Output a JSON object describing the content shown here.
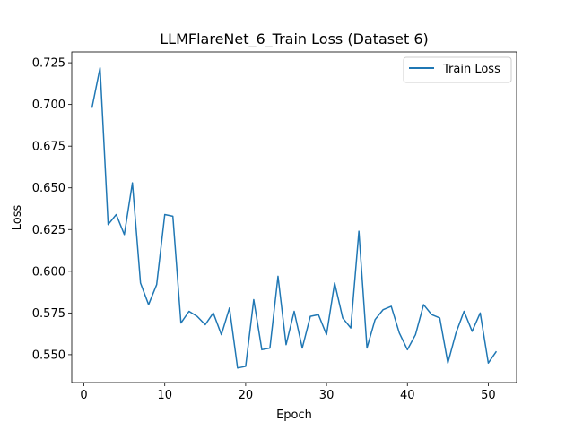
{
  "chart_data": {
    "type": "line",
    "title": "LLMFlareNet_6_Train Loss  (Dataset 6)",
    "xlabel": "Epoch",
    "ylabel": "Loss",
    "xlim": [
      -1.5,
      53.5
    ],
    "ylim": [
      0.5333,
      0.7315
    ],
    "xticks": [
      0,
      10,
      20,
      30,
      40,
      50
    ],
    "yticks": [
      0.55,
      0.575,
      0.6,
      0.625,
      0.65,
      0.675,
      0.7,
      0.725
    ],
    "ytick_labels": [
      "0.550",
      "0.575",
      "0.600",
      "0.625",
      "0.650",
      "0.675",
      "0.700",
      "0.725"
    ],
    "grid": false,
    "legend_position": "top-right",
    "series": [
      {
        "name": "Train Loss",
        "color": "#1f77b4",
        "x": [
          1,
          2,
          3,
          4,
          5,
          6,
          7,
          8,
          9,
          10,
          11,
          12,
          13,
          14,
          15,
          16,
          17,
          18,
          19,
          20,
          21,
          22,
          23,
          24,
          25,
          26,
          27,
          28,
          29,
          30,
          31,
          32,
          33,
          34,
          35,
          36,
          37,
          38,
          39,
          40,
          41,
          42,
          43,
          44,
          45,
          46,
          47,
          48,
          49,
          50,
          51
        ],
        "y": [
          0.698,
          0.722,
          0.628,
          0.634,
          0.622,
          0.653,
          0.593,
          0.58,
          0.592,
          0.634,
          0.633,
          0.569,
          0.576,
          0.573,
          0.568,
          0.575,
          0.562,
          0.578,
          0.542,
          0.543,
          0.583,
          0.553,
          0.554,
          0.597,
          0.556,
          0.576,
          0.554,
          0.573,
          0.574,
          0.562,
          0.593,
          0.572,
          0.566,
          0.624,
          0.554,
          0.571,
          0.577,
          0.579,
          0.563,
          0.553,
          0.562,
          0.58,
          0.574,
          0.572,
          0.545,
          0.563,
          0.576,
          0.564,
          0.575,
          0.545,
          0.552
        ]
      }
    ]
  }
}
